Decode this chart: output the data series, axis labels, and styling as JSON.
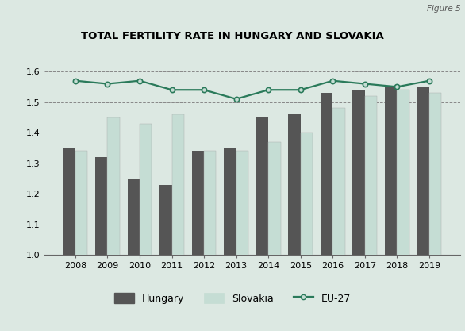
{
  "title": "TOTAL FERTILITY RATE IN HUNGARY AND SLOVAKIA",
  "figure_label": "Figure 5",
  "years": [
    2008,
    2009,
    2010,
    2011,
    2012,
    2013,
    2014,
    2015,
    2016,
    2017,
    2018,
    2019
  ],
  "hungary": [
    1.35,
    1.32,
    1.25,
    1.23,
    1.34,
    1.35,
    1.45,
    1.46,
    1.53,
    1.54,
    1.55,
    1.55
  ],
  "slovakia": [
    1.34,
    1.45,
    1.43,
    1.46,
    1.34,
    1.34,
    1.37,
    1.4,
    1.48,
    1.52,
    1.54,
    1.53
  ],
  "eu27": [
    1.57,
    1.56,
    1.57,
    1.54,
    1.54,
    1.51,
    1.54,
    1.54,
    1.57,
    1.56,
    1.55,
    1.57
  ],
  "hungary_color": "#555555",
  "slovakia_color": "#c5ddd4",
  "eu27_color": "#2a7a5a",
  "eu27_marker_facecolor": "#c5ddd4",
  "chart_bg": "#dce8e2",
  "outer_bg": "#dce8e2",
  "title_bg": "#ffffff",
  "ylim": [
    1.0,
    1.65
  ],
  "yticks": [
    1.0,
    1.1,
    1.2,
    1.3,
    1.4,
    1.5,
    1.6
  ],
  "grid_color": "#888888",
  "bar_width": 0.38
}
